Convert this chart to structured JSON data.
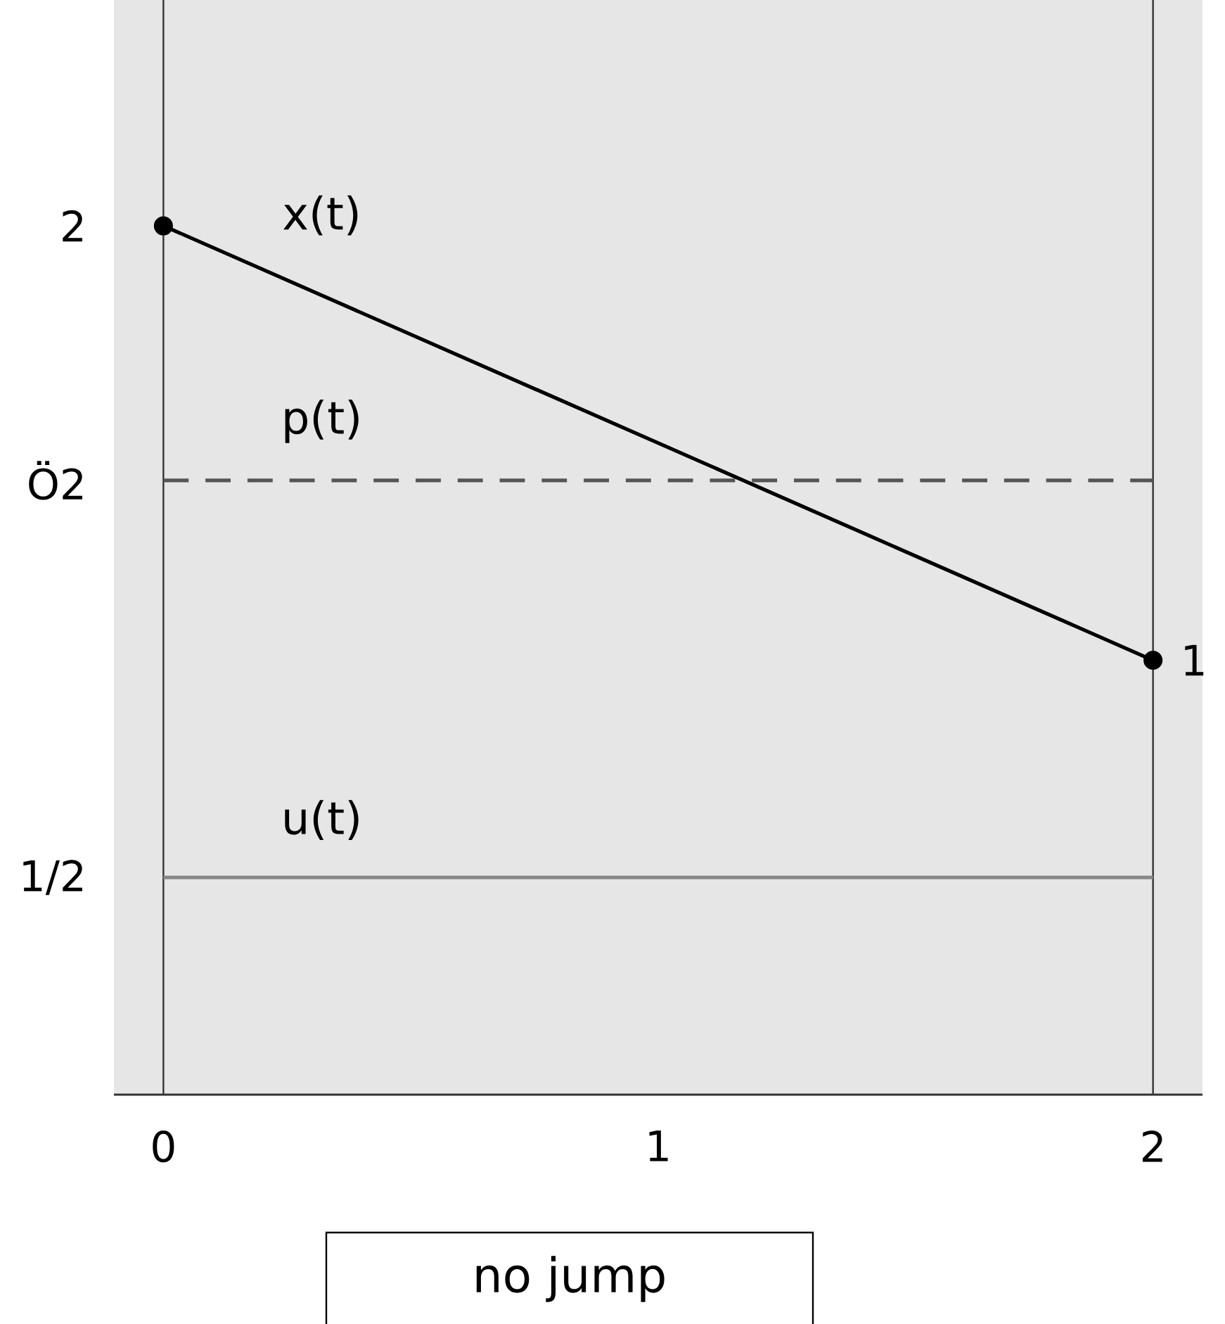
{
  "chart_data": {
    "type": "line",
    "x": [
      0,
      2
    ],
    "xlim": [
      -0.1,
      2.1
    ],
    "ylim": [
      0,
      2.52
    ],
    "xticks": [
      0,
      1,
      2
    ],
    "yticks": [
      {
        "value": 0.5,
        "label": "1/2"
      },
      {
        "value": 1.414,
        "label": "Ö2"
      },
      {
        "value": 2,
        "label": "2"
      }
    ],
    "series": [
      {
        "name": "x(t)",
        "color": "#000000",
        "values": [
          2,
          1
        ],
        "marker": "circle",
        "line_style": "solid"
      },
      {
        "name": "p(t)",
        "color": "#555555",
        "values": [
          1.414,
          1.414
        ],
        "marker": "none",
        "line_style": "dashed"
      },
      {
        "name": "u(t)",
        "color": "#888888",
        "values": [
          0.5,
          0.5
        ],
        "marker": "none",
        "line_style": "solid"
      }
    ],
    "ref_lines": [
      {
        "axis": "x",
        "value": 0,
        "color": "#333333"
      },
      {
        "axis": "x",
        "value": 2,
        "color": "#333333"
      }
    ],
    "annotations": [
      {
        "text": "1",
        "x": 2,
        "y": 1
      },
      "no jump"
    ]
  }
}
